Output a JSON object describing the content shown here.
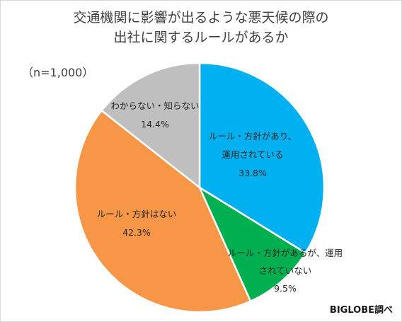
{
  "title_lines": [
    "交通機関に影響が出るような悪天候の際の",
    "出社に関するルールがあるか"
  ],
  "sample_size": "（n=1,000）",
  "source": "BIGLOBE調べ",
  "chart_data": {
    "type": "pie",
    "title": "交通機関に影響が出るような悪天候の際の出社に関するルールがあるか",
    "unit": "%",
    "slices": [
      {
        "label_lines": [
          "ルール・方針があり、",
          "運用されている"
        ],
        "value": 33.8,
        "value_label": "33.8%",
        "color": "#00b0f0"
      },
      {
        "label_lines": [
          "ルール・方針があるが、運用",
          "されていない"
        ],
        "value": 9.5,
        "value_label": "9.5%",
        "color": "#00b050"
      },
      {
        "label_lines": [
          "ルール・方針はない"
        ],
        "value": 42.3,
        "value_label": "42.3%",
        "color": "#f79646"
      },
      {
        "label_lines": [
          "わからない・知らない"
        ],
        "value": 14.4,
        "value_label": "14.4%",
        "color": "#bfbfbf"
      }
    ]
  }
}
